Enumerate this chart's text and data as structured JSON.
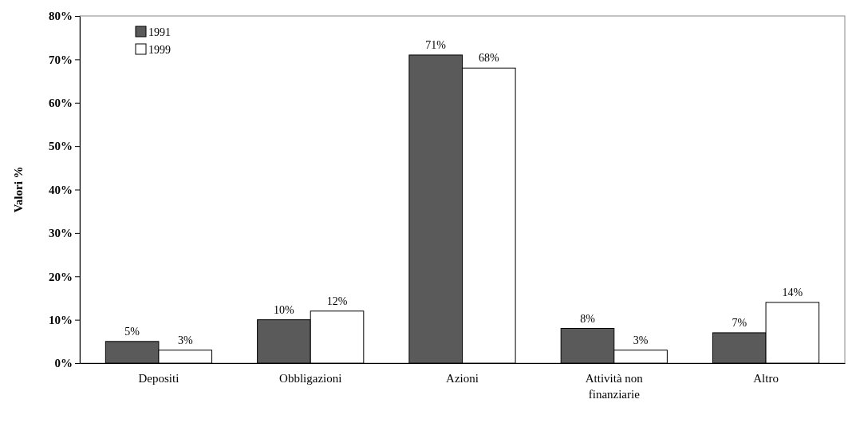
{
  "chart_data": {
    "type": "bar",
    "ylabel": "Valori %",
    "categories": [
      "Depositi",
      "Obbligazioni",
      "Azioni",
      "Attività non finanziarie",
      "Altro"
    ],
    "series": [
      {
        "name": "1991",
        "color": "#5a5a5a",
        "values": [
          5,
          10,
          71,
          8,
          7
        ],
        "value_labels": [
          "5%",
          "10%",
          "71%",
          "8%",
          "7%"
        ]
      },
      {
        "name": "1999",
        "color": "#ffffff",
        "values": [
          3,
          12,
          68,
          3,
          14
        ],
        "value_labels": [
          "3%",
          "12%",
          "68%",
          "3%",
          "14%"
        ]
      }
    ],
    "ylim": [
      0,
      80
    ],
    "yticks": [
      {
        "value": 0,
        "label": "0%"
      },
      {
        "value": 10,
        "label": "10%"
      },
      {
        "value": 20,
        "label": "20%"
      },
      {
        "value": 30,
        "label": "30%"
      },
      {
        "value": 40,
        "label": "40%"
      },
      {
        "value": 50,
        "label": "50%"
      },
      {
        "value": 60,
        "label": "60%"
      },
      {
        "value": 70,
        "label": "70%"
      },
      {
        "value": 80,
        "label": "80%"
      }
    ],
    "grid": false,
    "legend": "top left"
  }
}
